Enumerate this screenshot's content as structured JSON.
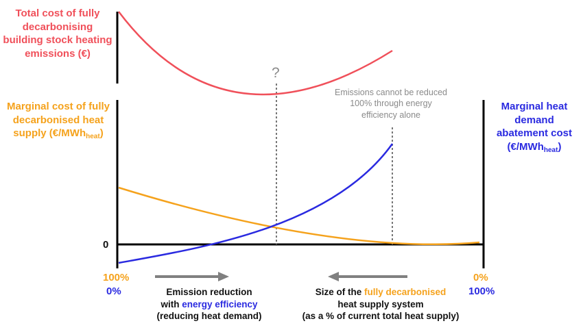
{
  "labels": {
    "total_cost": "Total cost of fully decarbonising building stock heating emissions (€)",
    "question_mark": "?",
    "marginal_supply_main": "Marginal cost of fully decarbonised heat supply (€/MWh",
    "marginal_supply_sub": "heat",
    "marginal_supply_close": ")",
    "marginal_demand_main": "Marginal heat demand abatement cost (€/MWh",
    "marginal_demand_sub": "heat",
    "marginal_demand_close": ")",
    "note": "Emissions cannot be reduced 100% through energy efficiency alone",
    "zero": "0",
    "left_top_pct": "100%",
    "left_bottom_pct": "0%",
    "right_top_pct": "0%",
    "right_bottom_pct": "100%",
    "emission_reduction_line1": "Emission reduction",
    "emission_reduction_with": "with",
    "emission_reduction_highlight": "energy efficiency",
    "emission_reduction_line3": "(reducing heat demand)",
    "size_prefix": "Size of the",
    "size_highlight": "fully decarbonised",
    "size_line2": "heat supply system",
    "size_line3": "(as a % of current total heat supply)"
  },
  "colors": {
    "total_cost_curve": "#f0505a",
    "supply_curve": "#f5a21c",
    "demand_curve": "#2a2ae0",
    "axis": "#000000",
    "dotted": "#777777",
    "arrow": "#808080"
  }
}
